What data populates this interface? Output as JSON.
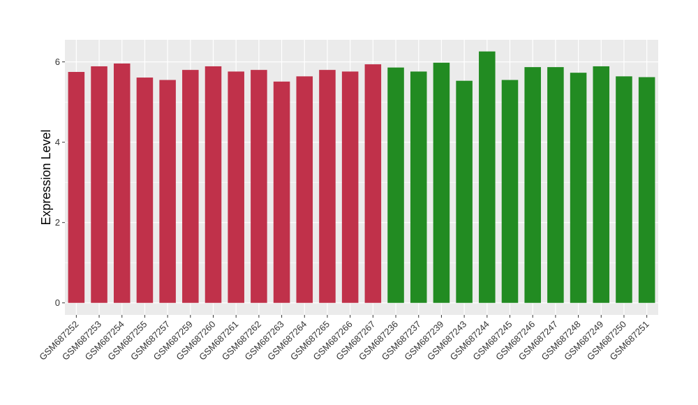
{
  "chart_data": {
    "type": "bar",
    "title": "",
    "xlabel": "",
    "ylabel": "Expression Level",
    "ylim": [
      -0.3,
      6.55
    ],
    "yticks": [
      0,
      2,
      4,
      6
    ],
    "grid": true,
    "legend": "none",
    "colors": {
      "group1": "#C0314A",
      "group2": "#228B22",
      "panel": "#EBEBEB",
      "grid": "#FFFFFF"
    },
    "categories": [
      "GSM687252",
      "GSM687253",
      "GSM687254",
      "GSM687255",
      "GSM687257",
      "GSM687259",
      "GSM687260",
      "GSM687261",
      "GSM687262",
      "GSM687263",
      "GSM687264",
      "GSM687265",
      "GSM687266",
      "GSM687267",
      "GSM687236",
      "GSM687237",
      "GSM687239",
      "GSM687243",
      "GSM687244",
      "GSM687245",
      "GSM687246",
      "GSM687247",
      "GSM687248",
      "GSM687249",
      "GSM687250",
      "GSM687251"
    ],
    "values": [
      5.75,
      5.89,
      5.96,
      5.61,
      5.55,
      5.8,
      5.89,
      5.76,
      5.8,
      5.51,
      5.64,
      5.8,
      5.76,
      5.94,
      5.86,
      5.76,
      5.98,
      5.53,
      6.26,
      5.55,
      5.87,
      5.87,
      5.73,
      5.89,
      5.64,
      5.62
    ],
    "groups": [
      "group1",
      "group1",
      "group1",
      "group1",
      "group1",
      "group1",
      "group1",
      "group1",
      "group1",
      "group1",
      "group1",
      "group1",
      "group1",
      "group1",
      "group2",
      "group2",
      "group2",
      "group2",
      "group2",
      "group2",
      "group2",
      "group2",
      "group2",
      "group2",
      "group2",
      "group2"
    ]
  }
}
